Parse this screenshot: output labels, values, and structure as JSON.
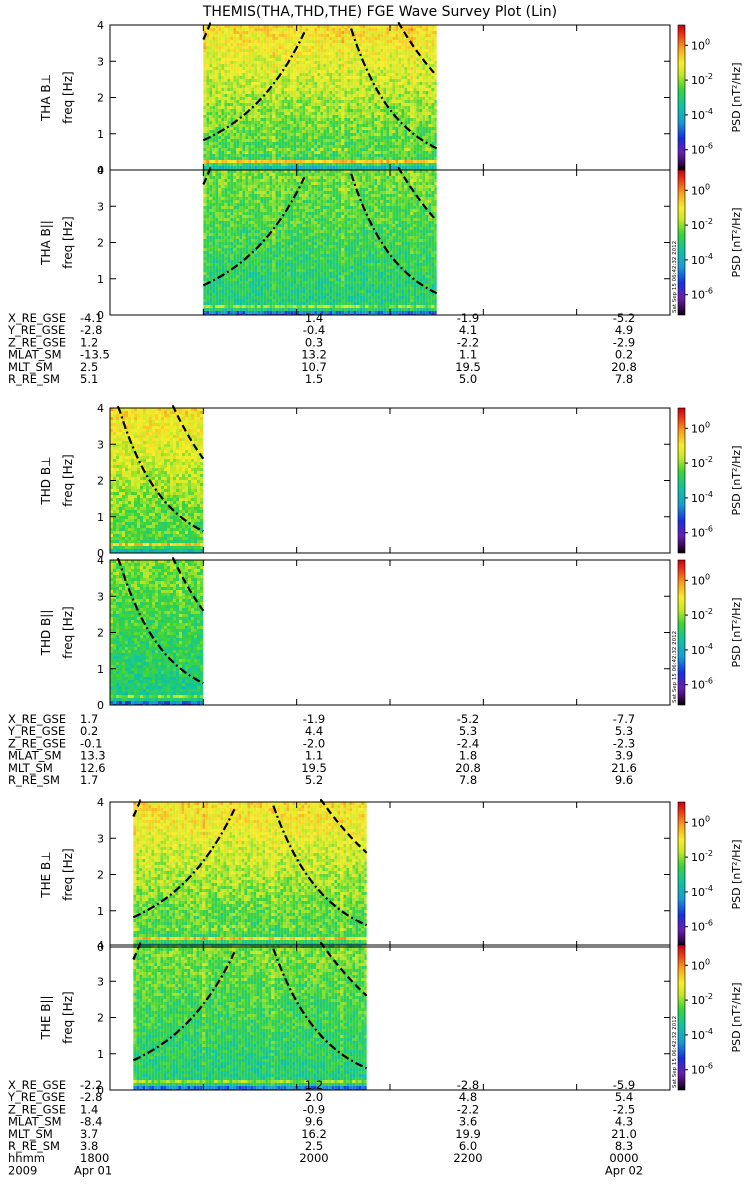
{
  "chart_data": {
    "type": "heatmap",
    "title": "THEMIS(THA,THD,THE) FGE Wave Survey Plot (Lin)",
    "x_range_hhmm": [
      1800,
      2400
    ],
    "y_range_hz": [
      0,
      4
    ],
    "yticks": [
      "0",
      "1",
      "2",
      "3",
      "4"
    ],
    "freq_label": "freq [Hz]",
    "colorbar": {
      "label": "PSD [nT²/Hz]",
      "ticks": [
        {
          "base": "10",
          "exp": "0"
        },
        {
          "base": "10",
          "exp": "-2"
        },
        {
          "base": "10",
          "exp": "-4"
        },
        {
          "base": "10",
          "exp": "-6"
        }
      ],
      "scale": "log"
    },
    "stamp": "Sat Sep 15 06:42:32 2012",
    "probes": [
      {
        "id": "THA",
        "coverage_hhmm": [
          1900,
          2130
        ],
        "panels": [
          {
            "label": "THA B⊥",
            "component": "perp",
            "lowband_hz": 0.28
          },
          {
            "label": "THA B||",
            "component": "par",
            "lowband_hz": 0.28
          }
        ],
        "curves": [
          {
            "style": "dashdot",
            "f0": 0.82,
            "fend": 3.8,
            "hhmm": 1900,
            "to": 2005
          },
          {
            "style": "dashdot",
            "f0": 3.9,
            "fend": 0.6,
            "hhmm": 2035,
            "to": 2130
          },
          {
            "style": "dashed",
            "f0": 3.6,
            "fend": 4.1,
            "hhmm": 1900,
            "to": 1905
          },
          {
            "style": "dashed",
            "f0": 4.1,
            "fend": 2.6,
            "hhmm": 2105,
            "to": 2130
          }
        ],
        "ephemeris": {
          "labels": [
            "X_RE_GSE",
            "Y_RE_GSE",
            "Z_RE_GSE",
            "MLAT_SM",
            "MLT_SM",
            "R_RE_SM"
          ],
          "columns": [
            [
              "-4.1",
              "-2.8",
              "1.2",
              "-13.5",
              "2.5",
              "5.1"
            ],
            [
              "1.4",
              "-0.4",
              "0.3",
              "13.2",
              "10.7",
              "1.5"
            ],
            [
              "-1.9",
              "4.1",
              "-2.2",
              "1.1",
              "19.5",
              "5.0"
            ],
            [
              "-5.2",
              "4.9",
              "-2.9",
              "0.2",
              "20.8",
              "7.8"
            ]
          ]
        }
      },
      {
        "id": "THD",
        "coverage_hhmm": [
          1800,
          1900
        ],
        "panels": [
          {
            "label": "THD B⊥",
            "component": "perp",
            "lowband_hz": 0.3
          },
          {
            "label": "THD B||",
            "component": "par",
            "lowband_hz": 0.3
          }
        ],
        "curves": [
          {
            "style": "dashdot",
            "f0": 4.1,
            "fend": 0.6,
            "hhmm": 1805,
            "to": 1900
          },
          {
            "style": "dashed",
            "f0": 4.1,
            "fend": 2.6,
            "hhmm": 1840,
            "to": 1900
          }
        ],
        "ephemeris": {
          "labels": [
            "X_RE_GSE",
            "Y_RE_GSE",
            "Z_RE_GSE",
            "MLAT_SM",
            "MLT_SM",
            "R_RE_SM"
          ],
          "columns": [
            [
              "1.7",
              "0.2",
              "-0.1",
              "13.3",
              "12.6",
              "1.7"
            ],
            [
              "-1.9",
              "4.4",
              "-2.0",
              "1.1",
              "19.5",
              "5.2"
            ],
            [
              "-5.2",
              "5.3",
              "-2.4",
              "1.8",
              "20.8",
              "7.8"
            ],
            [
              "-7.7",
              "5.3",
              "-2.3",
              "3.9",
              "21.6",
              "9.6"
            ]
          ]
        }
      },
      {
        "id": "THE",
        "coverage_hhmm": [
          1815,
          2045
        ],
        "panels": [
          {
            "label": "THE B⊥",
            "component": "perp",
            "lowband_hz": 0.3
          },
          {
            "label": "THE B||",
            "component": "par",
            "lowband_hz": 0.3
          }
        ],
        "curves": [
          {
            "style": "dashdot",
            "f0": 0.82,
            "fend": 3.8,
            "hhmm": 1815,
            "to": 1920
          },
          {
            "style": "dashdot",
            "f0": 3.9,
            "fend": 0.6,
            "hhmm": 1945,
            "to": 2045
          },
          {
            "style": "dashed",
            "f0": 3.6,
            "fend": 4.1,
            "hhmm": 1815,
            "to": 1820
          },
          {
            "style": "dashed",
            "f0": 4.1,
            "fend": 2.6,
            "hhmm": 2015,
            "to": 2045
          }
        ],
        "ephemeris": {
          "labels": [
            "X_RE_GSE",
            "Y_RE_GSE",
            "Z_RE_GSE",
            "MLAT_SM",
            "MLT_SM",
            "R_RE_SM"
          ],
          "columns": [
            [
              "-2.2",
              "-2.8",
              "1.4",
              "-8.4",
              "3.7",
              "3.8"
            ],
            [
              "1.2",
              "2.0",
              "-0.9",
              "9.6",
              "16.2",
              "2.5"
            ],
            [
              "-2.8",
              "4.8",
              "-2.2",
              "3.6",
              "19.9",
              "6.0"
            ],
            [
              "-5.9",
              "5.4",
              "-2.5",
              "4.3",
              "21.0",
              "8.3"
            ]
          ]
        }
      }
    ],
    "time_axis": {
      "row_labels": [
        "hhmm",
        "2009"
      ],
      "hhmm": [
        "1800",
        "2000",
        "2200",
        "0000"
      ],
      "dates": [
        "Apr 01",
        "Apr 02"
      ]
    }
  }
}
